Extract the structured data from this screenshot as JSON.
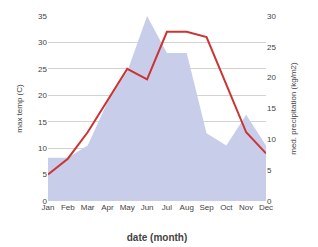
{
  "chart_data": {
    "type": "line",
    "categories": [
      "Jan",
      "Feb",
      "Mar",
      "Apr",
      "May",
      "Jun",
      "Jul",
      "Aug",
      "Sep",
      "Oct",
      "Nov",
      "Dec"
    ],
    "xlabel": "date (month)",
    "ylabel": "max temp (C)",
    "y2label": "med. precipitation (kg/m2)",
    "series": [
      {
        "type": "area",
        "axis": "y2",
        "color": "#c8ceea",
        "values": [
          7,
          7,
          9,
          16,
          21,
          30,
          24,
          24,
          11,
          9,
          14,
          9
        ]
      },
      {
        "type": "line",
        "color": "#cc3333",
        "values": [
          5,
          8,
          13,
          19,
          25,
          23,
          32,
          32,
          31,
          22,
          13,
          9
        ]
      }
    ],
    "ylim": [
      0,
      35
    ],
    "yticks": [
      0,
      5,
      10,
      15,
      20,
      25,
      30,
      35
    ],
    "y2lim": [
      0,
      30
    ],
    "y2ticks": [
      0,
      5,
      10,
      15,
      20,
      25,
      30
    ],
    "grid": true
  }
}
